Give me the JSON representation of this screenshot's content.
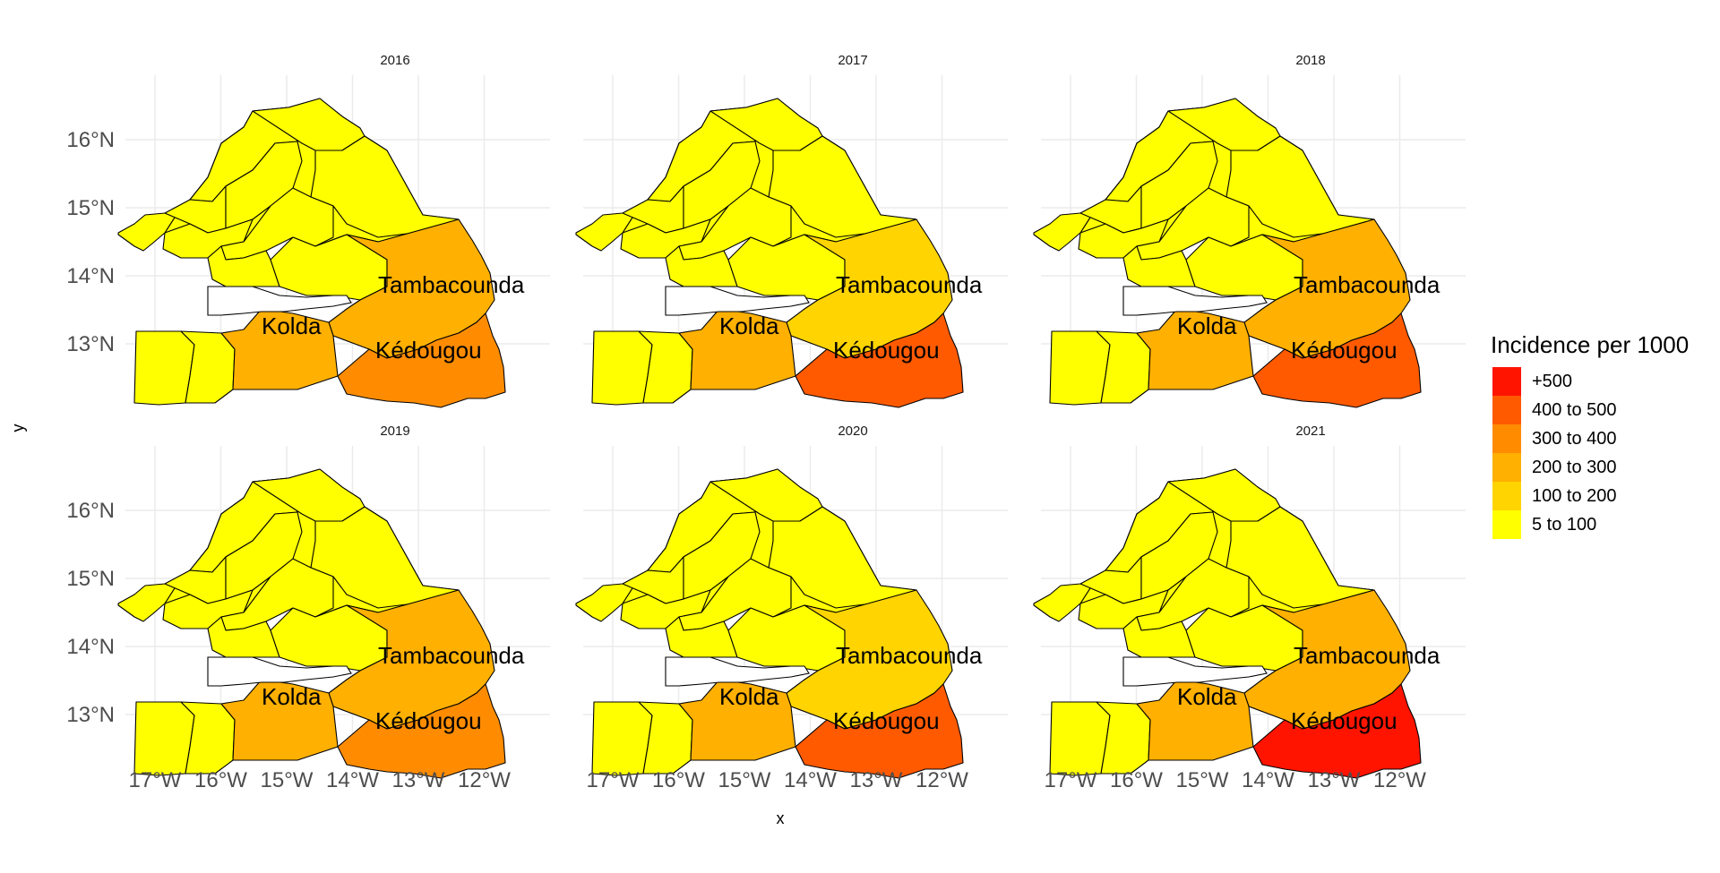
{
  "figure": {
    "x_axis_title": "x",
    "y_axis_title": "y",
    "lat_ticks": [
      "16°N",
      "15°N",
      "14°N",
      "13°N"
    ],
    "lon_ticks": [
      "17°W",
      "16°W",
      "15°W",
      "14°W",
      "13°W",
      "12°W"
    ]
  },
  "legend": {
    "title": "Incidence per 1000",
    "items": [
      {
        "label": "+500",
        "color": "#ff1400"
      },
      {
        "label": "400 to 500",
        "color": "#ff5a00"
      },
      {
        "label": "300 to 400",
        "color": "#ff8c00"
      },
      {
        "label": "200 to 300",
        "color": "#ffb000"
      },
      {
        "label": "100 to 200",
        "color": "#ffd400"
      },
      {
        "label": "5 to 100",
        "color": "#ffff00"
      }
    ]
  },
  "region_labels": [
    "Tambacounda",
    "Kolda",
    "Kédougou"
  ],
  "chart_data": {
    "type": "choropleth",
    "x": "longitude",
    "y": "latitude",
    "xlim": [
      -17.6,
      -11.3
    ],
    "ylim": [
      12.2,
      16.8
    ],
    "legend_title": "Incidence per 1000",
    "scale": [
      "5 to 100",
      "100 to 200",
      "200 to 300",
      "300 to 400",
      "400 to 500",
      "+500"
    ],
    "panels": [
      {
        "year": "2016",
        "regions": {
          "Tambacounda": "200 to 300",
          "Kolda": "200 to 300",
          "Kédougou": "300 to 400",
          "others": "5 to 100"
        }
      },
      {
        "year": "2017",
        "regions": {
          "Tambacounda": "100 to 200",
          "Kolda": "200 to 300",
          "Kédougou": "400 to 500",
          "others": "5 to 100"
        }
      },
      {
        "year": "2018",
        "regions": {
          "Tambacounda": "200 to 300",
          "Kolda": "200 to 300",
          "Kédougou": "400 to 500",
          "others": "5 to 100"
        }
      },
      {
        "year": "2019",
        "regions": {
          "Tambacounda": "200 to 300",
          "Kolda": "200 to 300",
          "Kédougou": "300 to 400",
          "others": "5 to 100"
        }
      },
      {
        "year": "2020",
        "regions": {
          "Tambacounda": "100 to 200",
          "Kolda": "200 to 300",
          "Kédougou": "400 to 500",
          "others": "5 to 100"
        }
      },
      {
        "year": "2021",
        "regions": {
          "Tambacounda": "200 to 300",
          "Kolda": "200 to 300",
          "Kédougou": "+500",
          "others": "5 to 100"
        }
      }
    ]
  }
}
